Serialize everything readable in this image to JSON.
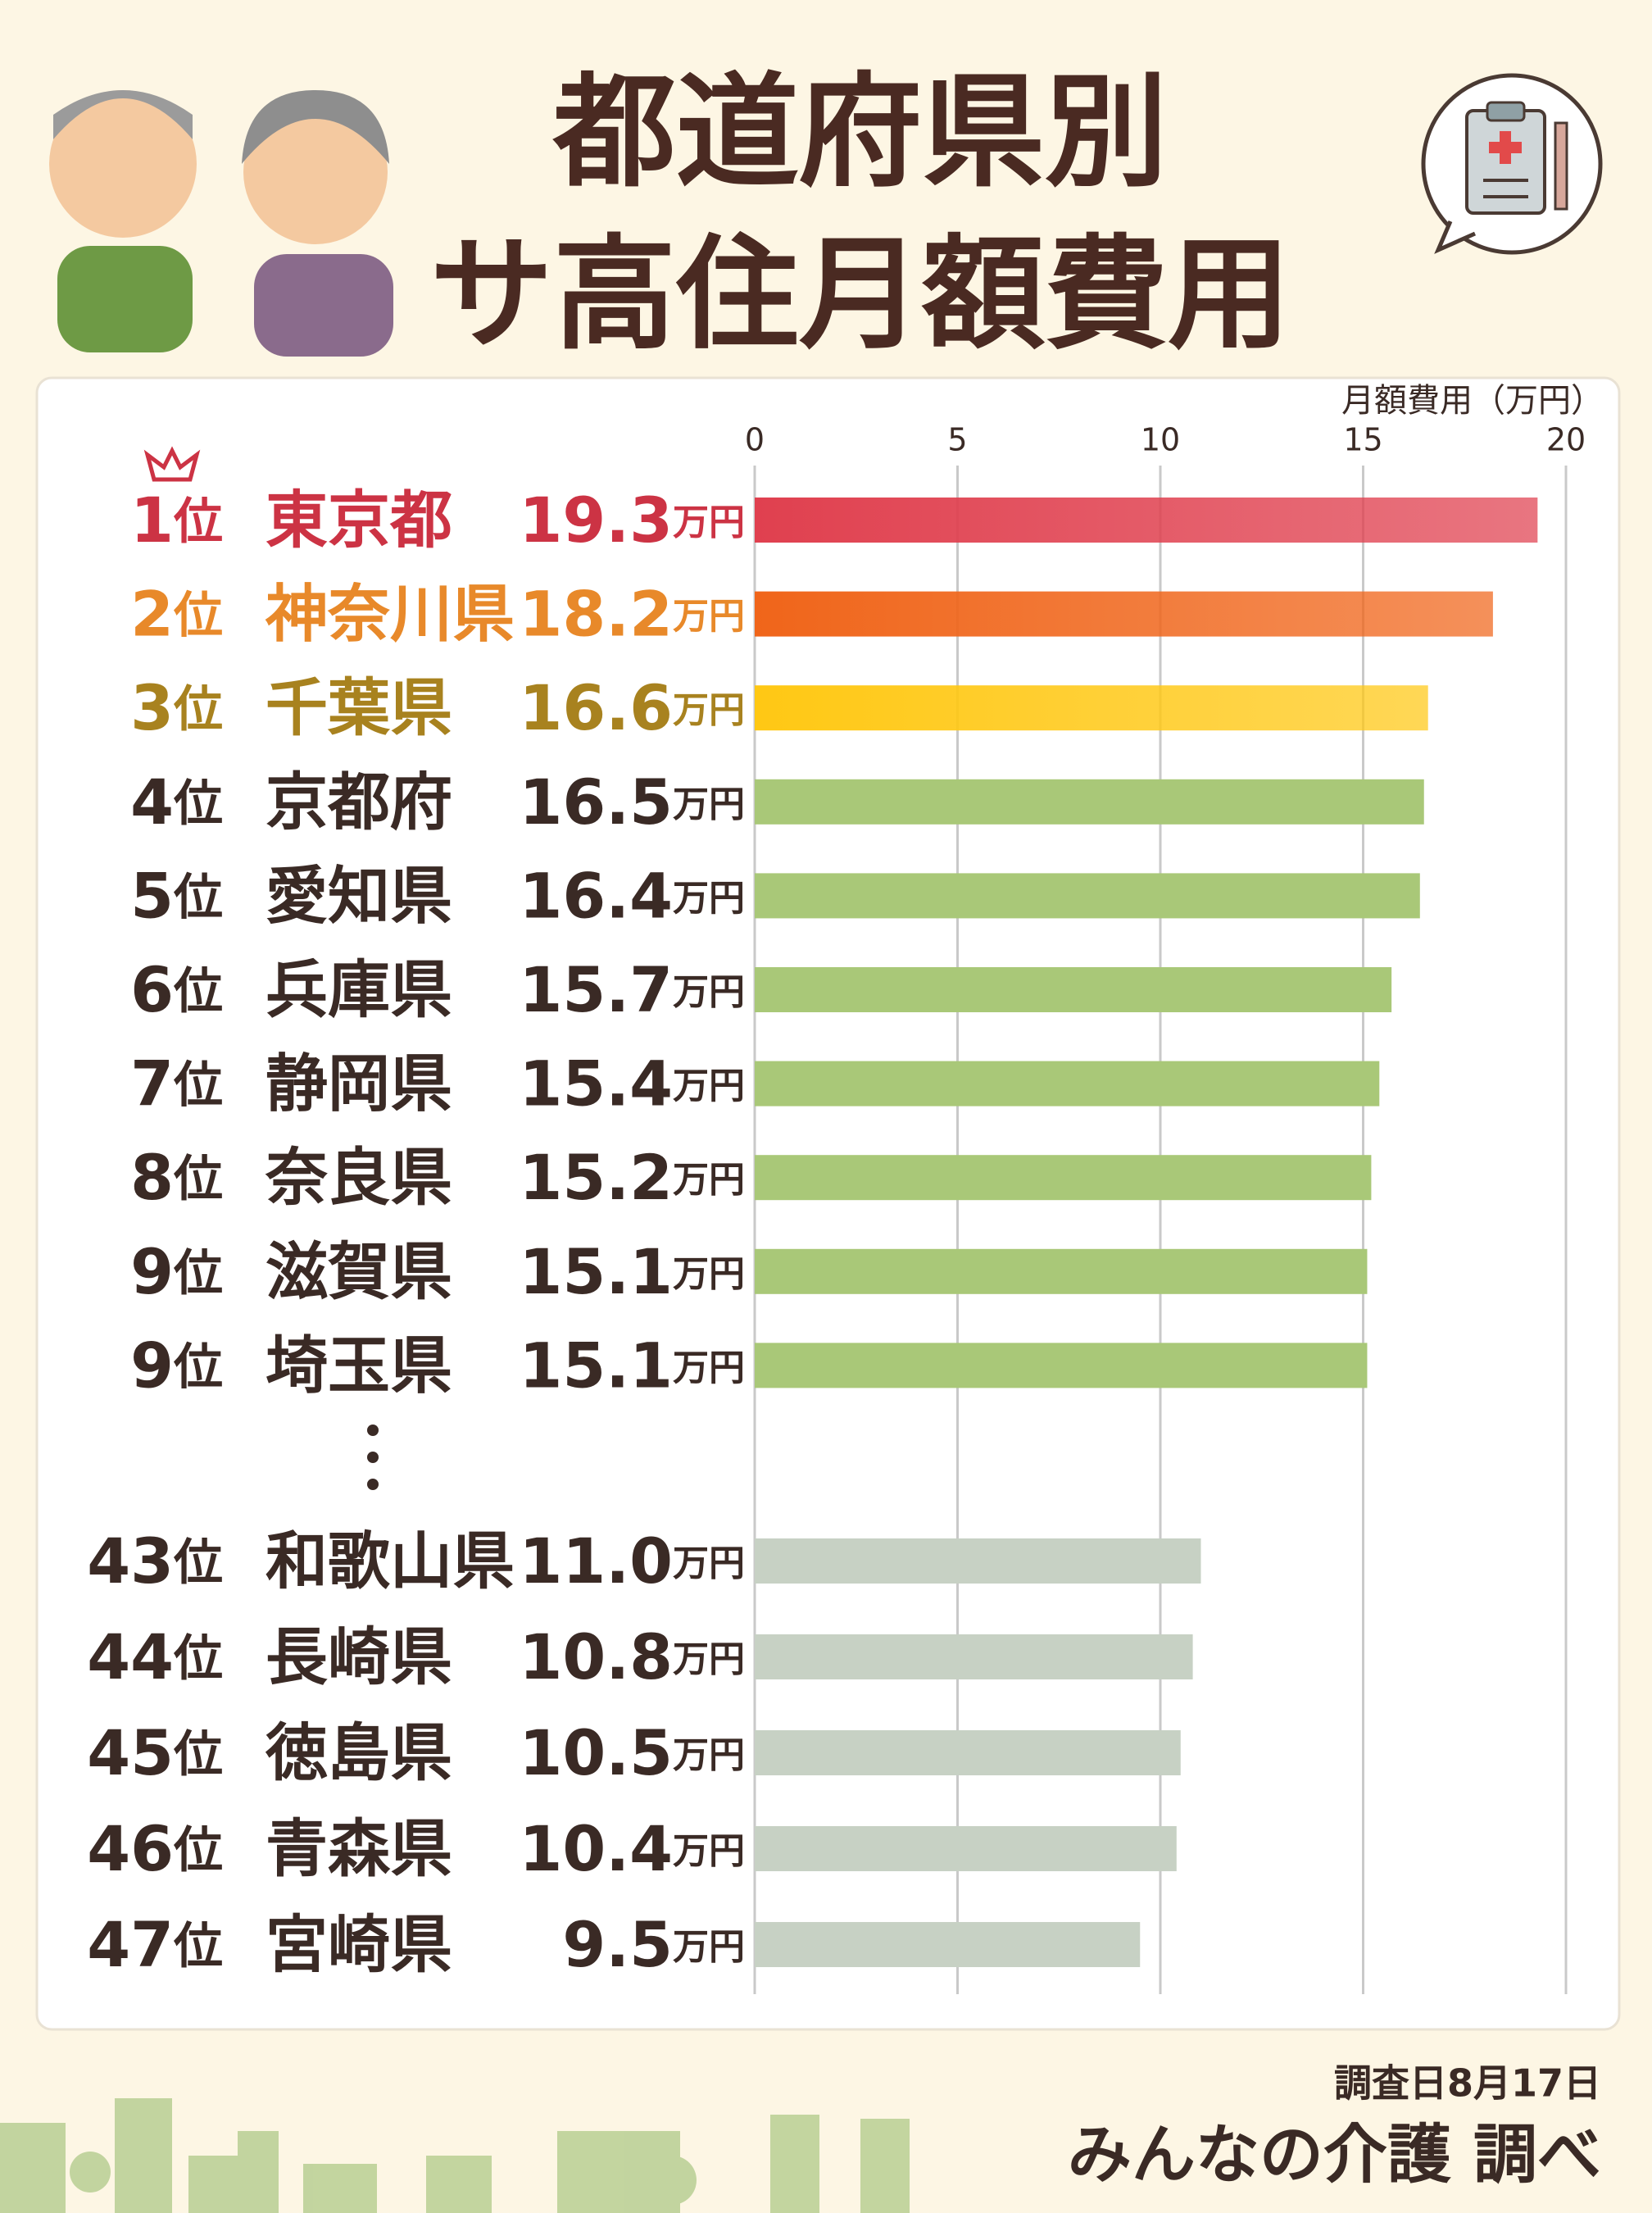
{
  "chart_data": {
    "type": "bar",
    "orientation": "horizontal",
    "title": [
      "都道府県別",
      "サ高住月額費用"
    ],
    "x_axis_label": "月額費用（万円）",
    "ranks": [
      "1位",
      "2位",
      "3位",
      "4位",
      "5位",
      "6位",
      "7位",
      "8位",
      "9位",
      "9位",
      "43位",
      "44位",
      "45位",
      "46位",
      "47位"
    ],
    "categories": [
      "東京都",
      "神奈川県",
      "千葉県",
      "京都府",
      "愛知県",
      "兵庫県",
      "静岡県",
      "奈良県",
      "滋賀県",
      "埼玉県",
      "和歌山県",
      "長崎県",
      "徳島県",
      "青森県",
      "宮崎県"
    ],
    "values": [
      19.3,
      18.2,
      16.6,
      16.5,
      16.4,
      15.7,
      15.4,
      15.2,
      15.1,
      15.1,
      11.0,
      10.8,
      10.5,
      10.4,
      9.5
    ],
    "value_labels": [
      "19.3万円",
      "18.2万円",
      "16.6万円",
      "16.5万円",
      "16.4万円",
      "15.7万円",
      "15.4万円",
      "15.2万円",
      "15.1万円",
      "15.1万円",
      "11.0万円",
      "10.8万円",
      "10.5万円",
      "10.4万円",
      "9.5万円"
    ],
    "colors": [
      "#e0404f",
      "#f0651a",
      "#ffc814",
      "#a9c878",
      "#a9c878",
      "#a9c878",
      "#a9c878",
      "#a9c878",
      "#a9c878",
      "#a9c878",
      "#c7d1c4",
      "#c7d1c4",
      "#c7d1c4",
      "#c7d1c4",
      "#c7d1c4"
    ],
    "label_colors": [
      "#cc3344",
      "#e8892a",
      "#a8821f",
      "#3a2a25",
      "#3a2a25",
      "#3a2a25",
      "#3a2a25",
      "#3a2a25",
      "#3a2a25",
      "#3a2a25",
      "#3a2a25",
      "#3a2a25",
      "#3a2a25",
      "#3a2a25",
      "#3a2a25"
    ],
    "xlim": [
      0,
      20
    ],
    "xticks": [
      0,
      5,
      10,
      15,
      20
    ],
    "grid": true,
    "survey_date": "調査日8月17日",
    "source": "みんなの介護 調べ"
  }
}
